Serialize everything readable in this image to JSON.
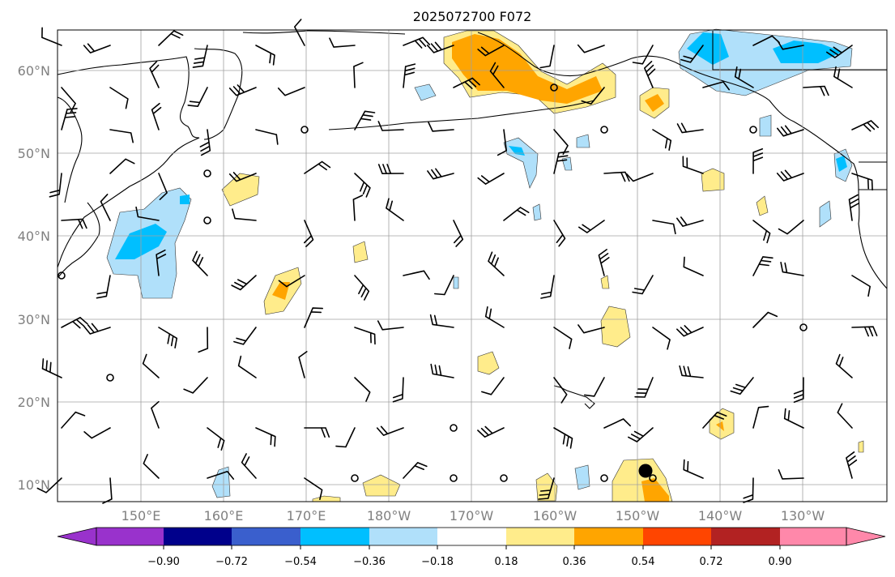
{
  "title": "2025072700 F072",
  "map": {
    "lat_labels": [
      "10°N",
      "20°N",
      "30°N",
      "40°N",
      "50°N",
      "60°N"
    ],
    "lon_labels": [
      "150°E",
      "160°E",
      "170°E",
      "180°W",
      "170°W",
      "160°W",
      "150°W",
      "140°W",
      "130°W"
    ],
    "grid": true,
    "marker": {
      "lon": -151,
      "lat": 11.5,
      "color": "#000000"
    }
  },
  "colorbar": {
    "colors": [
      "#9932cc",
      "#00008b",
      "#3a5fcd",
      "#00bfff",
      "#b0e0fa",
      "#ffffff",
      "#ffec8b",
      "#ffa500",
      "#ff4500",
      "#b22222",
      "#ff88aa"
    ],
    "ticks": [
      "−0.90",
      "−0.72",
      "−0.54",
      "−0.36",
      "−0.18",
      "0.18",
      "0.36",
      "0.54",
      "0.72",
      "0.90"
    ],
    "extend": "both"
  },
  "colors": {
    "lightblue": "#b0e0fa",
    "blue": "#00bfff",
    "yellow": "#ffec8b",
    "orange": "#ffa500",
    "darkorange": "#ff4500"
  }
}
